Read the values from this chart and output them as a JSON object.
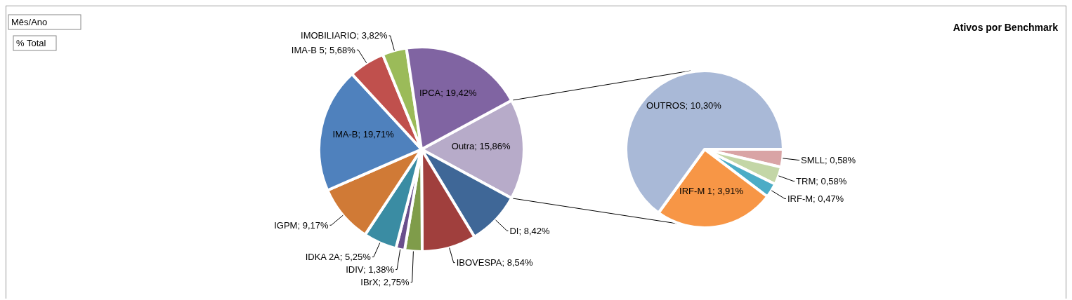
{
  "chart_data": [
    {
      "type": "pie",
      "annotations": [
        "Mês/Ano",
        "% Total"
      ],
      "categories": [
        "Outra",
        "DI",
        "IBOVESPA",
        "IBrX",
        "IDIV",
        "IDKA 2A",
        "IGPM",
        "IMA-B",
        "IMA-B 5",
        "IMOBILIARIO",
        "IPCA"
      ],
      "values": [
        15.86,
        8.42,
        8.54,
        2.75,
        1.38,
        5.25,
        9.17,
        19.71,
        5.68,
        3.82,
        19.42
      ],
      "value_labels": [
        "15,86%",
        "8,42%",
        "8,54%",
        "2,75%",
        "1,38%",
        "5,25%",
        "9,17%",
        "19,71%",
        "5,68%",
        "3,82%",
        "19,42%"
      ],
      "colors": [
        "#b7abc9",
        "#3f6797",
        "#a03f3d",
        "#7f9c4a",
        "#6a4f8c",
        "#3a8ca3",
        "#d07a36",
        "#4f81bd",
        "#c0504d",
        "#9bbb59",
        "#8064a2"
      ]
    },
    {
      "type": "pie",
      "title": "Ativos por Benchmark",
      "categories": [
        "SMLL",
        "TRM",
        "IRF-M",
        "IRF-M 1",
        "OUTROS"
      ],
      "values": [
        0.58,
        0.58,
        0.47,
        3.91,
        10.3
      ],
      "value_labels": [
        "0,58%",
        "0,58%",
        "0,47%",
        "3,91%",
        "10,30%"
      ],
      "colors": [
        "#d9a4a5",
        "#c3d6a6",
        "#4bacc6",
        "#f79646",
        "#a9b9d7"
      ]
    }
  ]
}
